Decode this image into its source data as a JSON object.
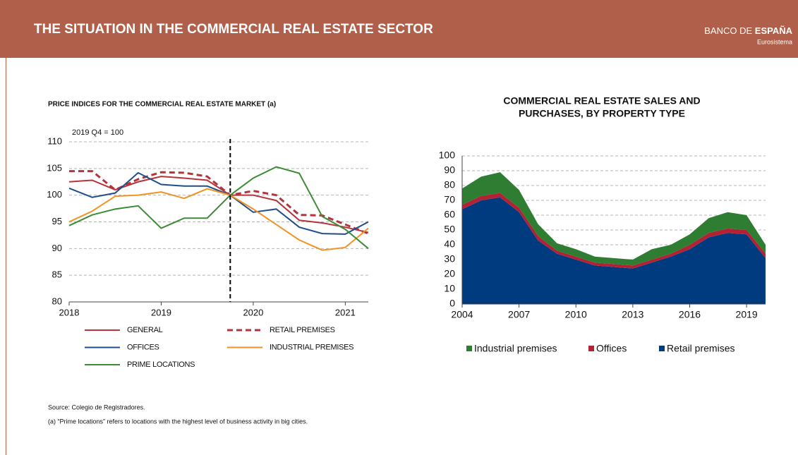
{
  "header": {
    "title": "THE SITUATION IN THE COMMERCIAL REAL ESTATE SECTOR",
    "logo_light": "BANCO DE ",
    "logo_bold": "ESPAÑA",
    "logo_sub": "Eurosistema"
  },
  "chart_data": [
    {
      "type": "line",
      "title": "PRICE INDICES FOR THE COMMERCIAL REAL ESTATE MARKET (a)",
      "subtitle": "2019 Q4 = 100",
      "x": [
        2018,
        2018.25,
        2018.5,
        2018.75,
        2019,
        2019.25,
        2019.5,
        2019.75,
        2020,
        2020.25,
        2020.5,
        2020.75,
        2021,
        2021.25
      ],
      "xlim": [
        2018,
        2021.25
      ],
      "xticks": [
        2018,
        2019,
        2020,
        2021
      ],
      "ylim": [
        80,
        110
      ],
      "yticks": [
        80,
        85,
        90,
        95,
        100,
        105,
        110
      ],
      "vline": 2019.75,
      "grid": true,
      "series": [
        {
          "name": "GENERAL",
          "color": "#b5343c",
          "dashed": false,
          "values": [
            102.5,
            102.8,
            101,
            102.5,
            103.5,
            103.2,
            102.8,
            100,
            100,
            99,
            95.3,
            94.8,
            94,
            93
          ]
        },
        {
          "name": "RETAIL PREMISES",
          "color": "#b5343c",
          "dashed": true,
          "values": [
            104.5,
            104.5,
            101,
            103,
            104.3,
            104.2,
            103.5,
            100,
            100.8,
            100,
            96.3,
            96.2,
            94.5,
            92.8
          ]
        },
        {
          "name": "OFFICES",
          "color": "#1f4e8c",
          "dashed": false,
          "values": [
            101.3,
            99.6,
            100.4,
            104.2,
            102,
            101.7,
            101.7,
            100,
            96.8,
            97.4,
            94,
            92.8,
            92.7,
            95
          ]
        },
        {
          "name": "INDUSTRIAL PREMISES",
          "color": "#f39222",
          "dashed": false,
          "values": [
            95,
            97,
            99.8,
            100,
            100.6,
            99.4,
            101.2,
            100,
            97.4,
            94.5,
            91.6,
            89.7,
            90.2,
            93.8
          ]
        },
        {
          "name": "PRIME LOCATIONS",
          "color": "#3d8b37",
          "dashed": false,
          "values": [
            94.3,
            96.3,
            97.4,
            98,
            93.8,
            95.7,
            95.7,
            100,
            103.2,
            105.3,
            104.1,
            96,
            93.6,
            90
          ]
        }
      ]
    },
    {
      "type": "stacked_area",
      "title": [
        "COMMERCIAL REAL ESTATE SALES AND",
        "PURCHASES, BY PROPERTY TYPE"
      ],
      "x": [
        2004,
        2005,
        2006,
        2007,
        2008,
        2009,
        2010,
        2011,
        2012,
        2013,
        2014,
        2015,
        2016,
        2017,
        2018,
        2019,
        2020
      ],
      "xlim": [
        2004,
        2020
      ],
      "xticks": [
        2004,
        2007,
        2010,
        2013,
        2016,
        2019
      ],
      "ylim": [
        0,
        100
      ],
      "yticks": [
        0,
        10,
        20,
        30,
        40,
        50,
        60,
        70,
        80,
        90,
        100
      ],
      "grid": true,
      "series": [
        {
          "name": "Retail premises",
          "color": "#003b7f",
          "values": [
            64,
            70,
            72,
            62,
            43,
            34,
            30,
            26,
            25,
            24,
            28,
            32,
            37,
            45,
            48,
            47,
            31
          ]
        },
        {
          "name": "Offices",
          "color": "#b22234",
          "values": [
            3,
            3,
            3,
            3,
            3,
            2,
            2,
            2,
            2,
            2,
            2,
            2,
            3,
            3,
            3,
            3,
            3
          ]
        },
        {
          "name": "Industrial premises",
          "color": "#2e7d32",
          "values": [
            11,
            13,
            14,
            12,
            8,
            5,
            5,
            4,
            4,
            4,
            7,
            6,
            7,
            10,
            11,
            10,
            6
          ]
        }
      ]
    }
  ],
  "footnotes": [
    "Source: Colegio de Registradores.",
    "(a) “Prime locations” refers to locations with the highest level of business activity in big cities."
  ]
}
